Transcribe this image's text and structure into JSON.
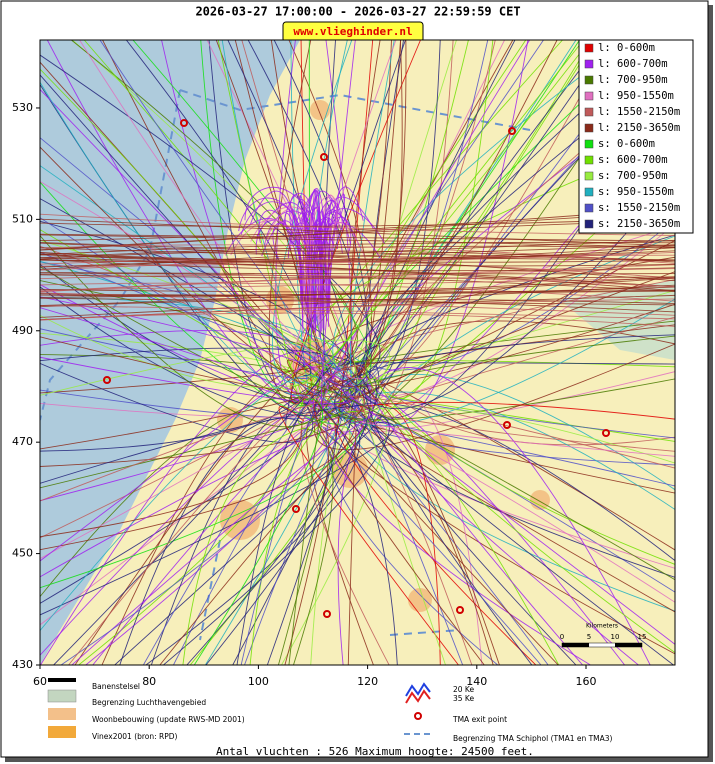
{
  "header": {
    "title": "2026-03-27 17:00:00 - 2026-03-27 22:59:59 CET",
    "url": "www.vlieghinder.nl"
  },
  "legend": [
    {
      "label": "l: 0-600m",
      "color": "#e00000"
    },
    {
      "label": "l: 600-700m",
      "color": "#a020f0"
    },
    {
      "label": "l: 700-950m",
      "color": "#4a7a00"
    },
    {
      "label": "l: 950-1550m",
      "color": "#e070c0"
    },
    {
      "label": "l: 1550-2150m",
      "color": "#c05a5a"
    },
    {
      "label": "l: 2150-3650m",
      "color": "#8b2a1a"
    },
    {
      "label": "s: 0-600m",
      "color": "#10e010"
    },
    {
      "label": "s: 600-700m",
      "color": "#70e000"
    },
    {
      "label": "s: 700-950m",
      "color": "#98ec40"
    },
    {
      "label": "s: 950-1550m",
      "color": "#20b0c0"
    },
    {
      "label": "s: 1550-2150m",
      "color": "#5050c8"
    },
    {
      "label": "s: 2150-3650m",
      "color": "#22227a"
    }
  ],
  "map": {
    "xlim": [
      60,
      176.3
    ],
    "ylim": [
      430,
      542.2
    ],
    "xticks": [
      60,
      80,
      100,
      120,
      140,
      160
    ],
    "yticks": [
      430,
      450,
      470,
      490,
      510,
      530
    ],
    "scale_title": "Kilometers",
    "scale": [
      "0",
      "5",
      "10",
      "15"
    ]
  },
  "map_legend": {
    "runways": "Banenstelsel",
    "airport_boundary": "Begrenzing Luchthavengebied",
    "housing": "Woonbebouwing (update RWS-MD 2001)",
    "vinex": "Vinex2001 (bron: RPD)",
    "ke20": "20 Ke",
    "ke35": "35 Ke",
    "tma_exit": "TMA exit point",
    "tma_boundary": "Begrenzing TMA Schiphol  (TMA1 en TMA3)"
  },
  "footer": "Antal vluchten : 526 Maximum hoogte: 24500 feet."
}
